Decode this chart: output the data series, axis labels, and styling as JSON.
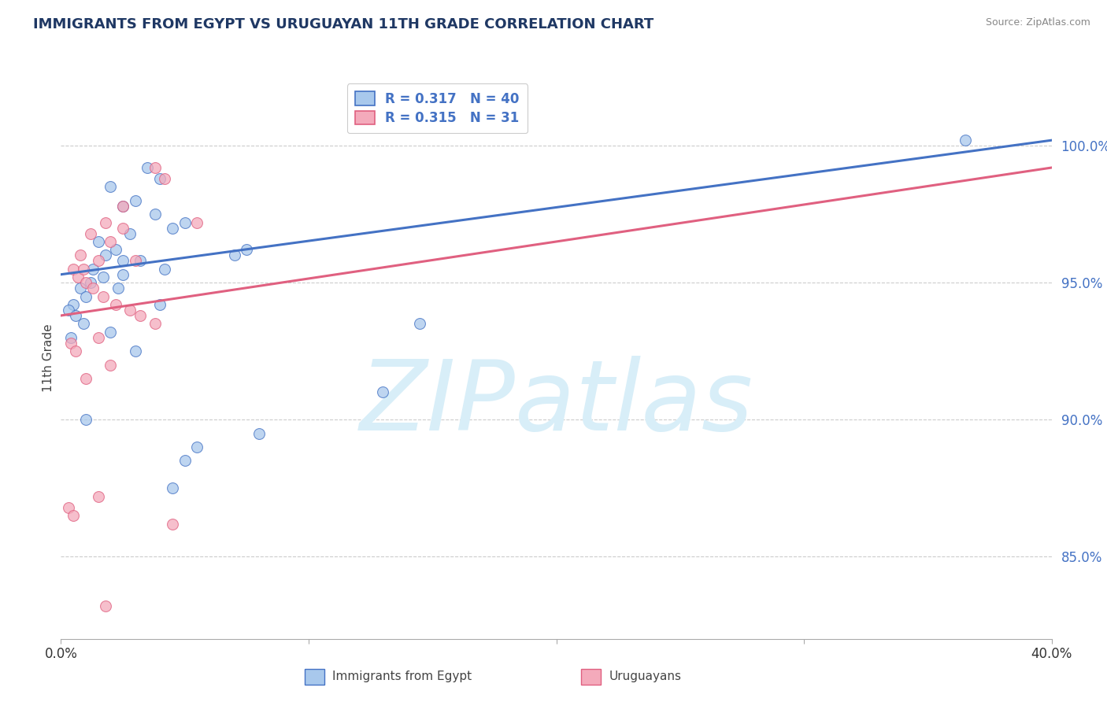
{
  "title": "IMMIGRANTS FROM EGYPT VS URUGUAYAN 11TH GRADE CORRELATION CHART",
  "source": "Source: ZipAtlas.com",
  "ylabel": "11th Grade",
  "xlim": [
    0.0,
    40.0
  ],
  "ylim": [
    82.0,
    102.5
  ],
  "yticks": [
    85.0,
    90.0,
    95.0,
    100.0
  ],
  "ytick_labels": [
    "85.0%",
    "90.0%",
    "95.0%",
    "100.0%"
  ],
  "xticks": [
    0.0,
    10.0,
    20.0,
    30.0,
    40.0
  ],
  "xtick_labels": [
    "0.0%",
    "",
    "",
    "",
    "40.0%"
  ],
  "blue_R": 0.317,
  "blue_N": 40,
  "pink_R": 0.315,
  "pink_N": 31,
  "legend_label_blue": "Immigrants from Egypt",
  "legend_label_pink": "Uruguayans",
  "blue_color": "#A8C8EC",
  "pink_color": "#F4AABB",
  "blue_line_color": "#4472C4",
  "pink_line_color": "#E06080",
  "title_color": "#1F3864",
  "axis_label_color": "#4472C4",
  "watermark_text": "ZIPatlas",
  "watermark_color": "#D8EEF8",
  "blue_scatter_x": [
    3.5,
    4.0,
    2.0,
    3.0,
    2.5,
    3.8,
    5.0,
    4.5,
    2.8,
    1.5,
    2.2,
    1.8,
    3.2,
    4.2,
    2.5,
    1.2,
    0.8,
    1.0,
    0.5,
    0.3,
    0.6,
    0.9,
    1.3,
    1.7,
    2.3,
    2.0,
    3.0,
    4.0,
    0.4,
    7.5,
    7.0,
    5.0,
    5.5,
    8.0,
    13.0,
    14.5,
    36.5,
    4.5,
    1.0,
    2.5
  ],
  "blue_scatter_y": [
    99.2,
    98.8,
    98.5,
    98.0,
    97.8,
    97.5,
    97.2,
    97.0,
    96.8,
    96.5,
    96.2,
    96.0,
    95.8,
    95.5,
    95.3,
    95.0,
    94.8,
    94.5,
    94.2,
    94.0,
    93.8,
    93.5,
    95.5,
    95.2,
    94.8,
    93.2,
    92.5,
    94.2,
    93.0,
    96.2,
    96.0,
    88.5,
    89.0,
    89.5,
    91.0,
    93.5,
    100.2,
    87.5,
    90.0,
    95.8
  ],
  "pink_scatter_x": [
    3.8,
    4.2,
    2.5,
    1.8,
    1.2,
    2.0,
    0.8,
    1.5,
    0.5,
    0.7,
    1.0,
    1.3,
    1.7,
    2.2,
    2.8,
    3.2,
    3.8,
    1.5,
    0.4,
    0.6,
    0.9,
    2.5,
    2.0,
    1.0,
    5.5,
    1.5,
    0.3,
    0.5,
    4.5,
    1.8,
    3.0
  ],
  "pink_scatter_y": [
    99.2,
    98.8,
    97.8,
    97.2,
    96.8,
    96.5,
    96.0,
    95.8,
    95.5,
    95.2,
    95.0,
    94.8,
    94.5,
    94.2,
    94.0,
    93.8,
    93.5,
    93.0,
    92.8,
    92.5,
    95.5,
    97.0,
    92.0,
    91.5,
    97.2,
    87.2,
    86.8,
    86.5,
    86.2,
    83.2,
    95.8
  ],
  "blue_line_x": [
    0.0,
    40.0
  ],
  "blue_line_y": [
    95.3,
    100.2
  ],
  "pink_line_x": [
    0.0,
    40.0
  ],
  "pink_line_y": [
    93.8,
    99.2
  ]
}
